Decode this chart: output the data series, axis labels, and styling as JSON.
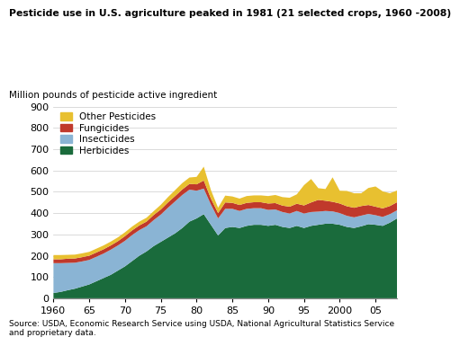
{
  "title": "Pesticide use in U.S. agriculture peaked in 1981 (21 selected crops, 1960 -2008)",
  "ylabel": "Million pounds of pesticide active ingredient",
  "source": "Source: USDA, Economic Research Service using USDA, National Agricultural Statistics Service\nand proprietary data.",
  "years": [
    1960,
    1961,
    1962,
    1963,
    1964,
    1965,
    1966,
    1967,
    1968,
    1969,
    1970,
    1971,
    1972,
    1973,
    1974,
    1975,
    1976,
    1977,
    1978,
    1979,
    1980,
    1981,
    1982,
    1983,
    1984,
    1985,
    1986,
    1987,
    1988,
    1989,
    1990,
    1991,
    1992,
    1993,
    1994,
    1995,
    1996,
    1997,
    1998,
    1999,
    2000,
    2001,
    2002,
    2003,
    2004,
    2005,
    2006,
    2007,
    2008
  ],
  "herbicides": [
    25,
    30,
    38,
    45,
    55,
    65,
    80,
    95,
    110,
    130,
    150,
    175,
    200,
    220,
    245,
    265,
    285,
    305,
    330,
    360,
    375,
    395,
    345,
    295,
    330,
    335,
    330,
    340,
    345,
    345,
    340,
    345,
    335,
    330,
    340,
    330,
    340,
    345,
    350,
    350,
    345,
    335,
    330,
    338,
    348,
    345,
    340,
    355,
    375
  ],
  "insecticides": [
    140,
    135,
    128,
    122,
    118,
    115,
    115,
    115,
    118,
    118,
    120,
    122,
    120,
    118,
    122,
    128,
    140,
    150,
    155,
    150,
    130,
    120,
    95,
    80,
    90,
    85,
    80,
    80,
    78,
    78,
    75,
    72,
    70,
    68,
    70,
    68,
    65,
    62,
    60,
    58,
    55,
    52,
    50,
    50,
    48,
    45,
    42,
    40,
    38
  ],
  "fungicides": [
    18,
    18,
    20,
    20,
    20,
    20,
    20,
    20,
    20,
    20,
    22,
    22,
    22,
    22,
    24,
    24,
    25,
    25,
    26,
    27,
    30,
    38,
    28,
    25,
    30,
    28,
    28,
    28,
    28,
    28,
    30,
    30,
    30,
    32,
    34,
    38,
    45,
    55,
    48,
    45,
    45,
    45,
    45,
    45,
    42,
    40,
    40,
    38,
    38
  ],
  "other": [
    20,
    20,
    18,
    18,
    18,
    18,
    18,
    18,
    18,
    18,
    18,
    18,
    18,
    18,
    18,
    22,
    25,
    28,
    30,
    30,
    35,
    65,
    40,
    25,
    32,
    30,
    30,
    32,
    32,
    32,
    35,
    38,
    40,
    42,
    44,
    95,
    110,
    55,
    55,
    115,
    60,
    72,
    68,
    60,
    80,
    95,
    80,
    60,
    55
  ],
  "colors": {
    "herbicides": "#1a6b3c",
    "insecticides": "#8ab4d4",
    "fungicides": "#c0392b",
    "other": "#e8c030"
  },
  "ylim": [
    0,
    900
  ],
  "yticks": [
    0,
    100,
    200,
    300,
    400,
    500,
    600,
    700,
    800,
    900
  ],
  "xticks": [
    1960,
    1965,
    1970,
    1975,
    1980,
    1985,
    1990,
    1995,
    2000,
    2005
  ],
  "xticklabels": [
    "1960",
    "65",
    "70",
    "75",
    "80",
    "85",
    "90",
    "95",
    "2000",
    "05"
  ]
}
